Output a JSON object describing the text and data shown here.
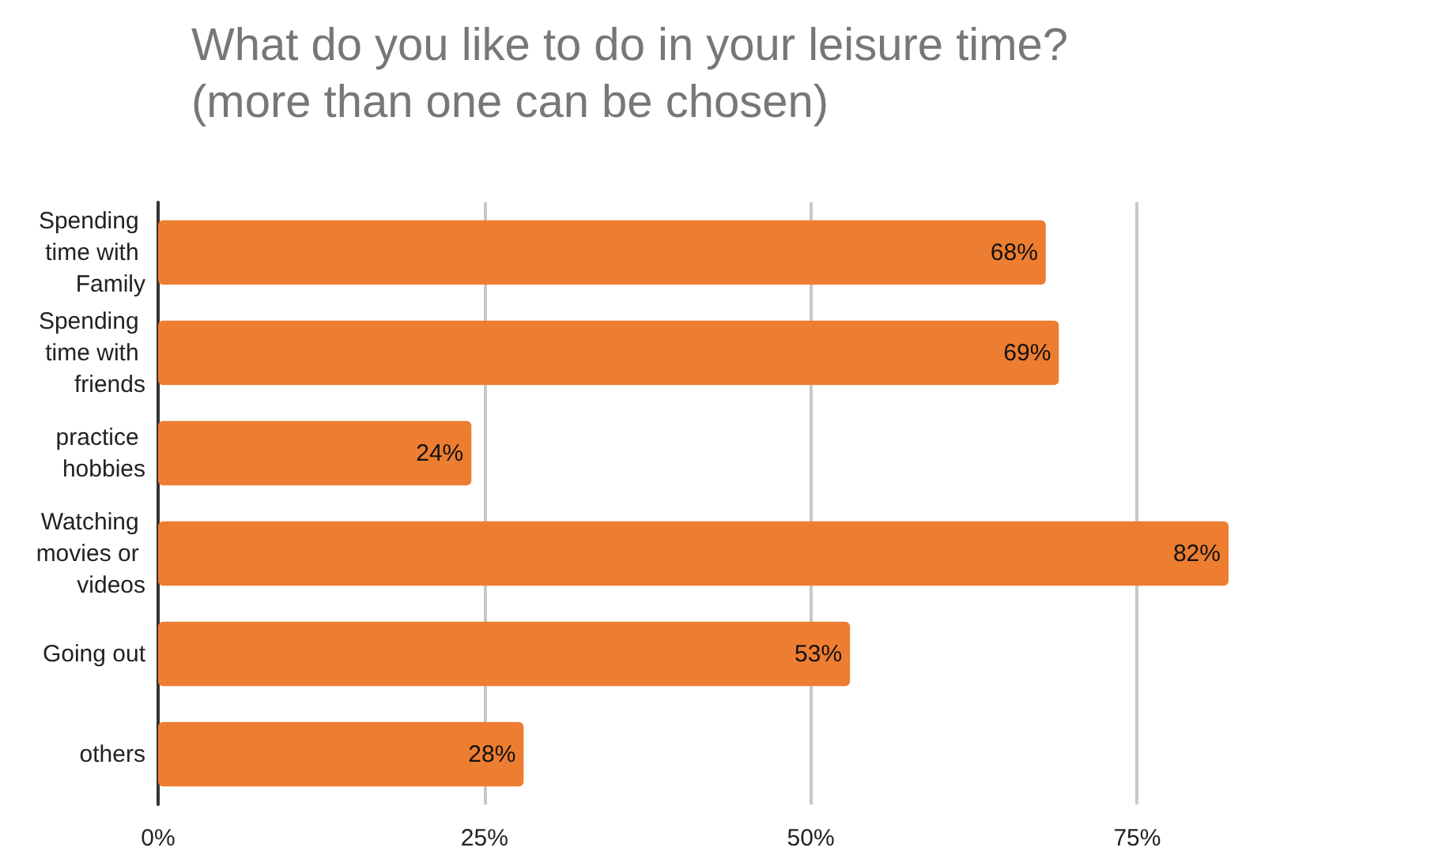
{
  "chart_data": {
    "type": "bar",
    "orientation": "horizontal",
    "title": "What do you like to do in your leisure time?\n(more than one can be chosen)",
    "categories": [
      "Spending time with Family",
      "Spending time with friends",
      "practice hobbies",
      "Watching movies or videos",
      "Going out",
      "others"
    ],
    "values": [
      68,
      69,
      24,
      82,
      53,
      28
    ],
    "color": "#ed7d31",
    "value_labels": [
      "68%",
      "69%",
      "24%",
      "82%",
      "53%",
      "28%"
    ],
    "xlim": [
      0,
      82
    ],
    "xticks": [
      {
        "value": 0,
        "label": "0%"
      },
      {
        "value": 25,
        "label": "25%"
      },
      {
        "value": 50,
        "label": "50%"
      },
      {
        "value": 75,
        "label": "75%"
      }
    ],
    "grid": "x"
  }
}
